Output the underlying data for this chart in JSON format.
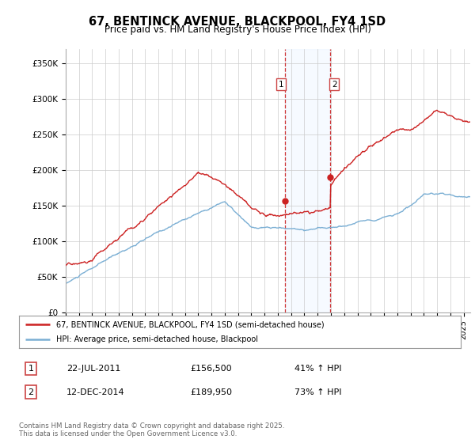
{
  "title": "67, BENTINCK AVENUE, BLACKPOOL, FY4 1SD",
  "subtitle": "Price paid vs. HM Land Registry's House Price Index (HPI)",
  "ylabel_ticks": [
    "£0",
    "£50K",
    "£100K",
    "£150K",
    "£200K",
    "£250K",
    "£300K",
    "£350K"
  ],
  "ytick_values": [
    0,
    50000,
    100000,
    150000,
    200000,
    250000,
    300000,
    350000
  ],
  "ylim": [
    0,
    370000
  ],
  "xlim_start": 1995.0,
  "xlim_end": 2025.5,
  "hpi_color": "#7bafd4",
  "price_color": "#cc2222",
  "sale1_date": 2011.55,
  "sale1_price": 156500,
  "sale2_date": 2014.95,
  "sale2_price": 189950,
  "shade_color": "#ddeeff",
  "vline_color": "#cc2222",
  "legend_label1": "67, BENTINCK AVENUE, BLACKPOOL, FY4 1SD (semi-detached house)",
  "legend_label2": "HPI: Average price, semi-detached house, Blackpool",
  "annot1_label": "1",
  "annot2_label": "2",
  "annot1_date_str": "22-JUL-2011",
  "annot1_price_str": "£156,500",
  "annot1_hpi_str": "41% ↑ HPI",
  "annot2_date_str": "12-DEC-2014",
  "annot2_price_str": "£189,950",
  "annot2_hpi_str": "73% ↑ HPI",
  "footer": "Contains HM Land Registry data © Crown copyright and database right 2025.\nThis data is licensed under the Open Government Licence v3.0.",
  "background_color": "#ffffff",
  "grid_color": "#cccccc"
}
